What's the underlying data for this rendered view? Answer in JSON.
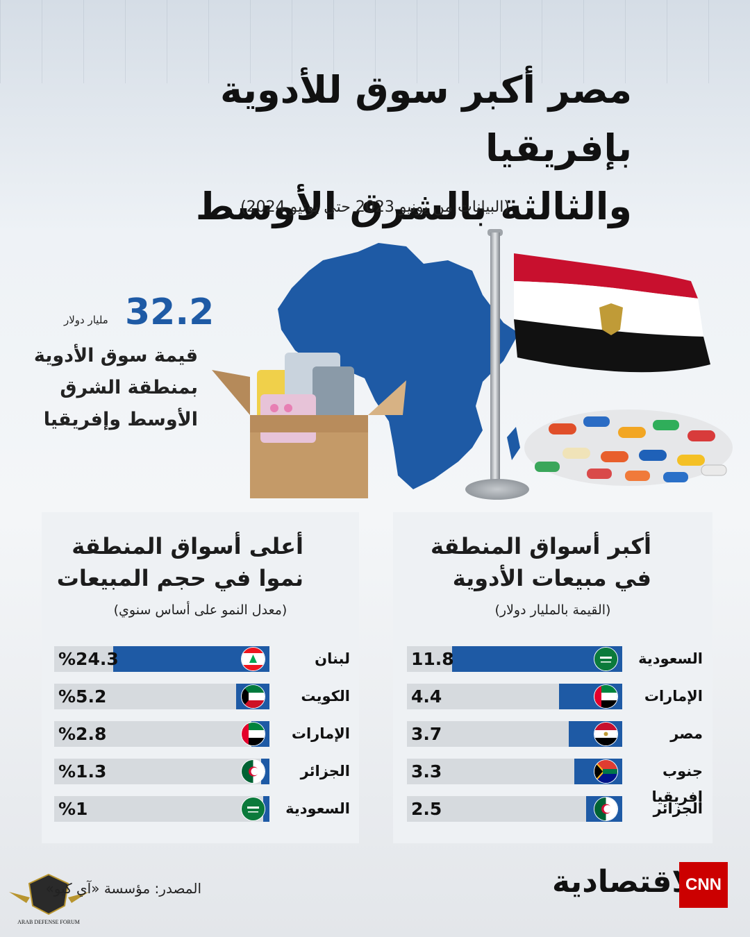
{
  "title_line1": "مصر أكبر سوق للأدوية بإفريقيا",
  "title_line2": "والثالثة بالشرق الأوسط",
  "subtitle": "(البيانات من يونيو 2023 حتى يونيو 2024)",
  "stat": {
    "number": "32.2",
    "unit": "مليار دولار",
    "line1": "قيمة سوق الأدوية",
    "line2": "بمنطقة الشرق",
    "line3": "الأوسط وإفريقيا"
  },
  "colors": {
    "bar": "#1e5aa5",
    "track": "#d6dade",
    "panel": "#eef1f4",
    "accent_red": "#cc0000"
  },
  "chart_data": [
    {
      "type": "bar",
      "title_line1": "أكبر أسواق المنطقة",
      "title_line2": "في مبيعات الأدوية",
      "subtitle": "(القيمة بالمليار دولار)",
      "categories": [
        "السعودية",
        "الإمارات",
        "مصر",
        "جنوب إفريقيا",
        "الجزائر"
      ],
      "values": [
        11.8,
        4.4,
        3.7,
        3.3,
        2.5
      ],
      "value_labels": [
        "11.8",
        "4.4",
        "3.7",
        "3.3",
        "2.5"
      ],
      "flags": [
        "saudi-flag",
        "uae-flag",
        "egypt-flag",
        "south-africa-flag",
        "algeria-flag"
      ]
    },
    {
      "type": "bar",
      "title_line1": "أعلى أسواق المنطقة",
      "title_line2": "نموا في حجم المبيعات",
      "subtitle": "(معدل النمو على أساس سنوي)",
      "categories": [
        "لبنان",
        "الكويت",
        "الإمارات",
        "الجزائر",
        "السعودية"
      ],
      "values": [
        24.3,
        5.2,
        2.8,
        1.3,
        1
      ],
      "value_labels": [
        "%24.3",
        "%5.2",
        "%2.8",
        "%1.3",
        "%1"
      ],
      "flags": [
        "lebanon-flag",
        "kuwait-flag",
        "uae-flag",
        "algeria-flag",
        "saudi-flag"
      ]
    }
  ],
  "source": "المصدر: مؤسسة «آي كيو»",
  "brand": "الاقتصادية",
  "cnn_logo": "CNN",
  "forum_badge": "ARAB DEFENSE FORUM"
}
